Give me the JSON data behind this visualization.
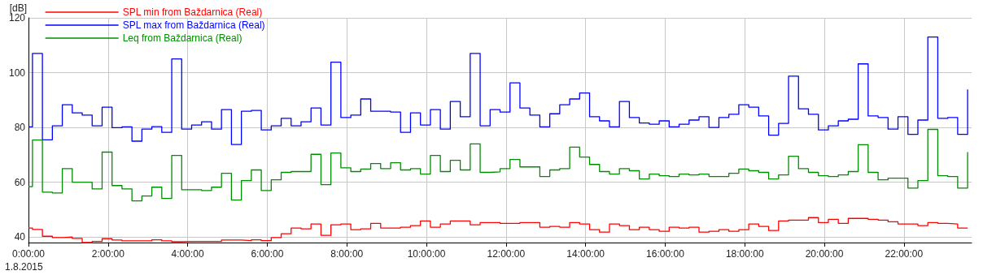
{
  "chart_data": {
    "type": "step",
    "ylabel": "[dB]",
    "annotations": [
      "1.8.2015"
    ],
    "x": [
      0,
      0.1,
      0.35,
      0.6,
      0.85,
      1.1,
      1.35,
      1.6,
      1.85,
      2.1,
      2.35,
      2.6,
      2.85,
      3.1,
      3.35,
      3.6,
      3.85,
      4.1,
      4.35,
      4.6,
      4.85,
      5.1,
      5.35,
      5.6,
      5.85,
      6.1,
      6.35,
      6.6,
      6.85,
      7.1,
      7.35,
      7.6,
      7.85,
      8.1,
      8.35,
      8.6,
      8.85,
      9.1,
      9.35,
      9.6,
      9.85,
      10.1,
      10.35,
      10.6,
      10.85,
      11.1,
      11.35,
      11.6,
      11.85,
      12.1,
      12.35,
      12.6,
      12.85,
      13.1,
      13.35,
      13.6,
      13.85,
      14.1,
      14.35,
      14.6,
      14.85,
      15.1,
      15.35,
      15.6,
      15.85,
      16.1,
      16.35,
      16.6,
      16.85,
      17.1,
      17.35,
      17.6,
      17.85,
      18.1,
      18.35,
      18.6,
      18.85,
      19.1,
      19.35,
      19.6,
      19.85,
      20.1,
      20.35,
      20.6,
      20.85,
      21.1,
      21.35,
      21.6,
      21.85,
      22.1,
      22.35,
      22.6,
      22.85,
      23.1,
      23.35,
      23.6
    ],
    "series": [
      {
        "name": "SPL min from Baždarnica (Real)",
        "color": "#ff0000",
        "values": [
          43.3,
          42.8,
          40.3,
          39.8,
          40,
          39.5,
          38,
          38.4,
          39.4,
          38.9,
          38.6,
          38.6,
          38.6,
          39,
          38.6,
          38.3,
          38.4,
          38.4,
          38.4,
          38.4,
          38.9,
          38.9,
          38.7,
          39,
          38.7,
          39.8,
          41.2,
          43.3,
          43,
          44.8,
          40.6,
          44.5,
          44.8,
          42.7,
          43,
          45,
          43.3,
          43.3,
          43.6,
          44.2,
          45.9,
          43.6,
          44.8,
          45.9,
          45.9,
          44.5,
          45.3,
          45.3,
          45,
          45,
          45.3,
          45.3,
          43.6,
          43.9,
          43.6,
          45.3,
          44.8,
          42.7,
          41.8,
          44.8,
          44.2,
          42.7,
          43.6,
          42.7,
          42.1,
          43.6,
          43.3,
          43.6,
          41.8,
          42.1,
          42.7,
          42.1,
          42.7,
          44.8,
          43.9,
          42.4,
          45.9,
          46.2,
          46.2,
          47.1,
          45.3,
          46.5,
          45,
          46.8,
          46.8,
          46.5,
          46.2,
          45.6,
          44.8,
          44.8,
          44.2,
          45.3,
          45,
          44.8,
          43.3,
          43.3
        ]
      },
      {
        "name": "SPL max from Baždarnica (Real)",
        "color": "#0000ff",
        "values": [
          80.2,
          107,
          75.5,
          80.6,
          88.3,
          85.3,
          84.5,
          80.6,
          87.4,
          79.9,
          80.2,
          75,
          79.4,
          80.3,
          78.2,
          105,
          79.4,
          80.9,
          82.1,
          79.4,
          86.5,
          73.8,
          85.9,
          86.2,
          79.1,
          80.6,
          83.3,
          80.6,
          82.1,
          87.1,
          80.9,
          103.8,
          83.6,
          84.5,
          90.4,
          85.9,
          85.9,
          85.6,
          78.2,
          85.3,
          80.9,
          86.5,
          79.4,
          89.5,
          83.9,
          107,
          80.6,
          86.5,
          85.6,
          96.3,
          87.1,
          84.5,
          80.2,
          85,
          88.3,
          90.4,
          92.6,
          83.9,
          82.4,
          80.2,
          89.5,
          83.6,
          81.6,
          81.2,
          82.4,
          80.2,
          81.2,
          82.7,
          83.9,
          80,
          83.6,
          84.8,
          88.3,
          87.4,
          84.2,
          77.2,
          81.5,
          98.7,
          86.8,
          84.8,
          79.1,
          80.6,
          82.4,
          83,
          103.2,
          84.2,
          83.6,
          79.4,
          83.9,
          77.5,
          82.7,
          113,
          83.3,
          83.6,
          77.5,
          93.9
        ]
      },
      {
        "name": "Leq from Baždarnica (Real)",
        "color": "#008c00",
        "values": [
          58.4,
          75.4,
          56.4,
          56.1,
          65,
          60,
          60,
          57.6,
          71,
          58.8,
          57.6,
          53.2,
          55,
          58.2,
          54.1,
          69.8,
          57.3,
          57.3,
          57,
          58.2,
          63.3,
          53.5,
          60.6,
          64.5,
          57,
          60.9,
          63.6,
          63.9,
          63.9,
          70.2,
          59.1,
          70.7,
          65.3,
          63.9,
          64.8,
          66.8,
          65,
          67.1,
          64.5,
          65,
          63,
          69.8,
          63.9,
          68,
          64.5,
          74,
          63.6,
          63.8,
          65,
          68.3,
          65.6,
          65.6,
          62.1,
          64.5,
          65,
          72.8,
          69.2,
          66.5,
          63.9,
          63,
          65,
          64.2,
          61.2,
          63,
          62.4,
          62.1,
          63,
          62.7,
          63,
          62.1,
          62.1,
          63.3,
          64.8,
          64.2,
          63.6,
          61.2,
          62.7,
          69.5,
          65,
          63.6,
          62.4,
          62.1,
          62.7,
          63.9,
          73.7,
          63.6,
          60.9,
          61.5,
          61.5,
          57.9,
          60.6,
          79.3,
          62.4,
          62.1,
          57.9,
          71
        ]
      }
    ],
    "xlim": [
      0,
      23.7
    ],
    "xticks": [
      {
        "value": 0,
        "label": "0:00:00"
      },
      {
        "value": 2,
        "label": "2:00:00"
      },
      {
        "value": 4,
        "label": "4:00:00"
      },
      {
        "value": 6,
        "label": "6:00:00"
      },
      {
        "value": 8,
        "label": "8:00:00"
      },
      {
        "value": 10,
        "label": "10:00:00"
      },
      {
        "value": 12,
        "label": "12:00:00"
      },
      {
        "value": 14,
        "label": "14:00:00"
      },
      {
        "value": 16,
        "label": "16:00:00"
      },
      {
        "value": 18,
        "label": "18:00:00"
      },
      {
        "value": 20,
        "label": "20:00:00"
      },
      {
        "value": 22,
        "label": "22:00:00"
      }
    ],
    "ylim": [
      38,
      120
    ],
    "yticks": [
      40,
      60,
      80,
      100,
      120
    ],
    "grid": true,
    "legend": "top left",
    "marker": "none",
    "line_style": "solid"
  }
}
